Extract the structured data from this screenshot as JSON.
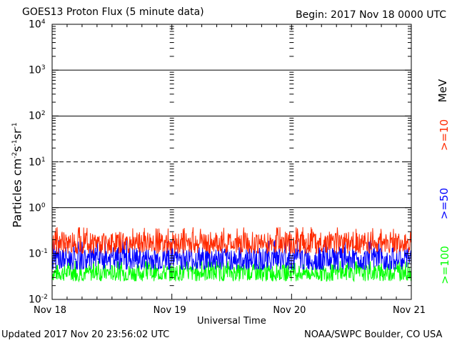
{
  "header": {
    "title": "GOES13 Proton Flux (5 minute data)",
    "begin": "Begin: 2017 Nov 18 0000 UTC"
  },
  "footer": {
    "updated": "Updated 2017 Nov 20 23:56:02 UTC",
    "source": "NOAA/SWPC Boulder, CO USA"
  },
  "labels": {
    "mev": "MeV",
    "ge10": ">=10",
    "ge50": ">=50",
    "ge100": ">=100"
  },
  "chart_data": {
    "type": "line",
    "title": "GOES13 Proton Flux (5 minute data)",
    "xlabel": "Universal Time",
    "ylabel": "Particles cm^-2 s^-1 sr^-1",
    "yscale": "log",
    "ylim": [
      0.01,
      10000
    ],
    "xlim": [
      0,
      3
    ],
    "x_tick_labels": [
      "Nov 18",
      "Nov 19",
      "Nov 20",
      "Nov 21"
    ],
    "y_tick_labels": [
      {
        "base": "10",
        "exp": "-2",
        "value": 0.01
      },
      {
        "base": "10",
        "exp": "-1",
        "value": 0.1
      },
      {
        "base": "10",
        "exp": "0",
        "value": 1
      },
      {
        "base": "10",
        "exp": "1",
        "value": 10
      },
      {
        "base": "10",
        "exp": "2",
        "value": 100
      },
      {
        "base": "10",
        "exp": "3",
        "value": 1000
      },
      {
        "base": "10",
        "exp": "4",
        "value": 10000
      }
    ],
    "threshold_lines": [
      {
        "value": 10,
        "style": "dashed"
      },
      {
        "value": 1,
        "style": "solid"
      },
      {
        "value": 100,
        "style": "solid"
      },
      {
        "value": 1000,
        "style": "solid"
      }
    ],
    "series": [
      {
        "name": ">=10 MeV",
        "color": "#ff2a00",
        "typical": 0.17,
        "range": [
          0.1,
          0.38
        ]
      },
      {
        "name": ">=50 MeV",
        "color": "#0000ff",
        "typical": 0.075,
        "range": [
          0.045,
          0.2
        ]
      },
      {
        "name": ">=100 MeV",
        "color": "#00ff00",
        "typical": 0.038,
        "range": [
          0.025,
          0.07
        ]
      }
    ],
    "sample_interval_minutes": 5,
    "days": 3
  }
}
